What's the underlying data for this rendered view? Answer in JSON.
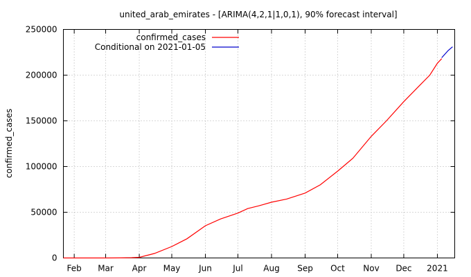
{
  "chart_data": {
    "type": "line",
    "title": "united_arab_emirates -  [ARIMA(4,2,1|1,0,1), 90% forecast interval]",
    "xlabel": "",
    "ylabel": "confirmed_cases",
    "ylim": [
      0,
      250000
    ],
    "xlim": [
      "2020-01-22",
      "2021-01-17"
    ],
    "y_ticks": [
      "0",
      "50000",
      "100000",
      "150000",
      "200000",
      "250000"
    ],
    "x_ticks": [
      {
        "date": "2020-02-01",
        "label": "Feb"
      },
      {
        "date": "2020-03-01",
        "label": "Mar"
      },
      {
        "date": "2020-04-01",
        "label": "Apr"
      },
      {
        "date": "2020-05-01",
        "label": "May"
      },
      {
        "date": "2020-06-01",
        "label": "Jun"
      },
      {
        "date": "2020-07-01",
        "label": "Jul"
      },
      {
        "date": "2020-08-01",
        "label": "Aug"
      },
      {
        "date": "2020-09-01",
        "label": "Sep"
      },
      {
        "date": "2020-10-01",
        "label": "Oct"
      },
      {
        "date": "2020-11-01",
        "label": "Nov"
      },
      {
        "date": "2020-12-01",
        "label": "Dec"
      },
      {
        "date": "2021-01-01",
        "label": "2021"
      }
    ],
    "grid": true,
    "legend_position": "top-left",
    "series": [
      {
        "name": "confirmed_cases",
        "color": "#ff0000",
        "points": [
          [
            "2020-01-22",
            0
          ],
          [
            "2020-02-15",
            8
          ],
          [
            "2020-03-01",
            21
          ],
          [
            "2020-03-15",
            86
          ],
          [
            "2020-03-25",
            333
          ],
          [
            "2020-04-01",
            664
          ],
          [
            "2020-04-15",
            4900
          ],
          [
            "2020-05-01",
            12481
          ],
          [
            "2020-05-15",
            21000
          ],
          [
            "2020-06-01",
            35192
          ],
          [
            "2020-06-15",
            42636
          ],
          [
            "2020-07-01",
            49069
          ],
          [
            "2020-07-10",
            54000
          ],
          [
            "2020-07-20",
            57000
          ],
          [
            "2020-08-01",
            61000
          ],
          [
            "2020-08-15",
            64500
          ],
          [
            "2020-09-01",
            71000
          ],
          [
            "2020-09-15",
            80000
          ],
          [
            "2020-10-01",
            95000
          ],
          [
            "2020-10-15",
            109000
          ],
          [
            "2020-11-01",
            133000
          ],
          [
            "2020-11-15",
            150000
          ],
          [
            "2020-12-01",
            171000
          ],
          [
            "2020-12-15",
            188000
          ],
          [
            "2020-12-25",
            200000
          ],
          [
            "2021-01-01",
            213000
          ],
          [
            "2021-01-05",
            218000
          ]
        ]
      },
      {
        "name": "Conditional on 2021-01-05",
        "color": "#0000cc",
        "points": [
          [
            "2021-01-05",
            219000
          ],
          [
            "2021-01-08",
            223000
          ],
          [
            "2021-01-11",
            227000
          ],
          [
            "2021-01-15",
            231000
          ]
        ]
      }
    ]
  }
}
